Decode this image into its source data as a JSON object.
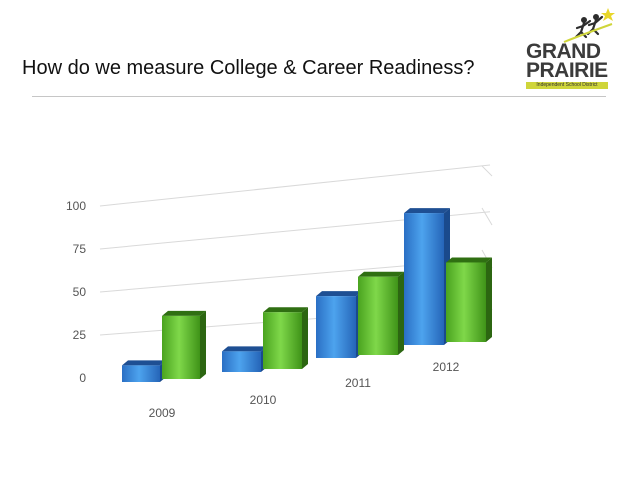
{
  "slide": {
    "title": "How do we measure College & Career Readiness?"
  },
  "logo": {
    "line1": "GRAND",
    "line2": "PRAIRIE",
    "subtitle": "Independent School District"
  },
  "colors": {
    "series_blue": "#2f7fd6",
    "series_green": "#5fbf2c",
    "logo_accent": "#cfd53a"
  },
  "chart_data": {
    "type": "bar",
    "categories": [
      "2009",
      "2010",
      "2011",
      "2012"
    ],
    "series": [
      {
        "values": [
          10,
          12,
          34,
          68
        ]
      },
      {
        "values": [
          38,
          33,
          43,
          41
        ]
      }
    ],
    "yticks": [
      0,
      25,
      50,
      75,
      100
    ],
    "ylim": [
      0,
      100
    ],
    "grid": true,
    "legend": "none"
  }
}
